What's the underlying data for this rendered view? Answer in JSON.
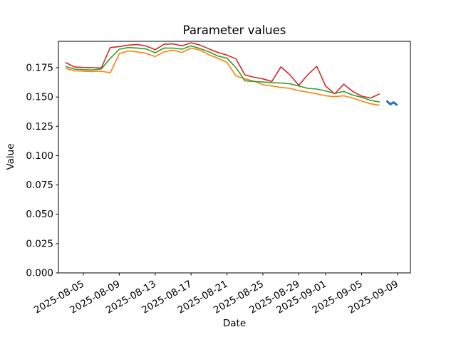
{
  "chart_data": {
    "type": "line",
    "title": "Parameter values",
    "xlabel": "Date",
    "ylabel": "Value",
    "grid": false,
    "legend": null,
    "ylim": [
      0,
      0.1975
    ],
    "y_tick_values": [
      0.0,
      0.025,
      0.05,
      0.075,
      0.1,
      0.125,
      0.15,
      0.175
    ],
    "y_tick_labels": [
      "0.000",
      "0.025",
      "0.050",
      "0.075",
      "0.100",
      "0.125",
      "0.150",
      "0.175"
    ],
    "x_tick_labels": [
      "2025-08-05",
      "2025-08-09",
      "2025-08-13",
      "2025-08-17",
      "2025-08-21",
      "2025-08-25",
      "2025-08-29",
      "2025-09-01",
      "2025-09-05",
      "2025-09-09"
    ],
    "x_tick_day_offsets": [
      2,
      6,
      10,
      14,
      18,
      22,
      26,
      29,
      33,
      37
    ],
    "start_date": "2025-08-03",
    "dates": [
      "2025-08-03",
      "2025-08-04",
      "2025-08-05",
      "2025-08-06",
      "2025-08-07",
      "2025-08-08",
      "2025-08-09",
      "2025-08-10",
      "2025-08-11",
      "2025-08-12",
      "2025-08-13",
      "2025-08-14",
      "2025-08-15",
      "2025-08-16",
      "2025-08-17",
      "2025-08-18",
      "2025-08-19",
      "2025-08-20",
      "2025-08-21",
      "2025-08-22",
      "2025-08-23",
      "2025-08-24",
      "2025-08-25",
      "2025-08-26",
      "2025-08-27",
      "2025-08-28",
      "2025-08-29",
      "2025-08-30",
      "2025-08-31",
      "2025-09-01",
      "2025-09-02",
      "2025-09-03",
      "2025-09-04",
      "2025-09-05",
      "2025-09-06",
      "2025-09-07"
    ],
    "series": [
      {
        "name": "orange",
        "color": "#ff7f0e",
        "values": [
          0.1744,
          0.1724,
          0.172,
          0.1717,
          0.172,
          0.1707,
          0.187,
          0.1893,
          0.1885,
          0.1872,
          0.1845,
          0.1885,
          0.19,
          0.188,
          0.1917,
          0.19,
          0.186,
          0.183,
          0.1795,
          0.168,
          0.1655,
          0.1635,
          0.1605,
          0.1594,
          0.1582,
          0.1574,
          0.1554,
          0.1542,
          0.1527,
          0.1511,
          0.1503,
          0.1511,
          0.1491,
          0.1466,
          0.1442,
          0.143
        ]
      },
      {
        "name": "green",
        "color": "#2ca02c",
        "values": [
          0.1762,
          0.1738,
          0.1733,
          0.173,
          0.174,
          0.183,
          0.1908,
          0.1922,
          0.1918,
          0.191,
          0.1878,
          0.1918,
          0.1917,
          0.1908,
          0.1937,
          0.1913,
          0.1885,
          0.185,
          0.1831,
          0.1751,
          0.1638,
          0.1633,
          0.1628,
          0.1622,
          0.1619,
          0.1613,
          0.1594,
          0.1574,
          0.1568,
          0.1552,
          0.1531,
          0.1548,
          0.1517,
          0.1497,
          0.1471,
          0.1457
        ]
      },
      {
        "name": "red",
        "color": "#d62728",
        "values": [
          0.1795,
          0.1757,
          0.1752,
          0.175,
          0.1748,
          0.1922,
          0.193,
          0.1943,
          0.1948,
          0.1935,
          0.1903,
          0.195,
          0.1953,
          0.1937,
          0.1962,
          0.1943,
          0.191,
          0.188,
          0.1858,
          0.1825,
          0.1688,
          0.1669,
          0.1655,
          0.1633,
          0.1757,
          0.169,
          0.16,
          0.169,
          0.1762,
          0.1592,
          0.1527,
          0.1609,
          0.1548,
          0.1507,
          0.1491,
          0.1527
        ]
      }
    ],
    "short_series": {
      "name": "blue",
      "color": "#1f77b4",
      "date_span": [
        "2025-09-08",
        "2025-09-09"
      ],
      "day_offsets": [
        35.85,
        36.2,
        36.55,
        36.9
      ],
      "values": [
        0.1462,
        0.1438,
        0.1455,
        0.1434
      ]
    }
  }
}
